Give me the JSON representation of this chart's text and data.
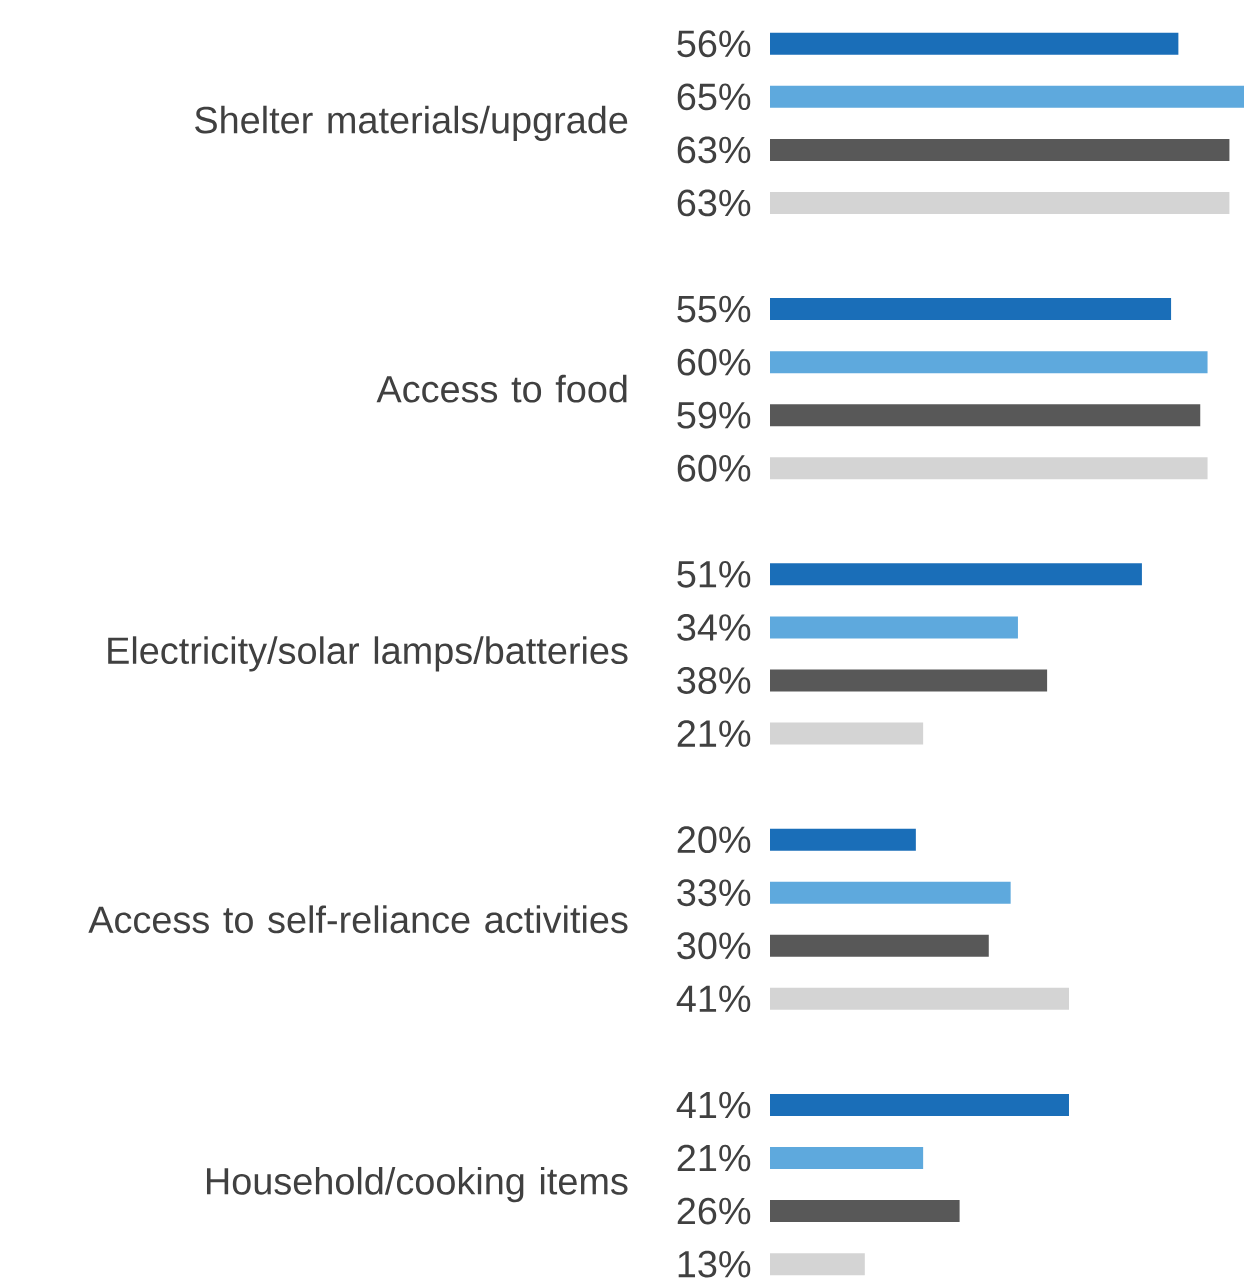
{
  "chart_data": {
    "type": "bar",
    "orientation": "horizontal",
    "categories": [
      "Shelter materials/upgrade",
      "Access to food",
      "Electricity/solar lamps/batteries",
      "Access to self-reliance activities",
      "Household/cooking items"
    ],
    "series": [
      {
        "color": "#1a6eb8",
        "values": [
          56,
          55,
          51,
          20,
          41
        ],
        "value_labels": [
          "56%",
          "55%",
          "51%",
          "20%",
          "41%"
        ]
      },
      {
        "color": "#5ea9dd",
        "values": [
          65,
          60,
          34,
          33,
          21
        ],
        "value_labels": [
          "65%",
          "60%",
          "34%",
          "33%",
          "21%"
        ]
      },
      {
        "color": "#585858",
        "values": [
          63,
          59,
          38,
          30,
          26
        ],
        "value_labels": [
          "63%",
          "59%",
          "38%",
          "30%",
          "26%"
        ]
      },
      {
        "color": "#d4d4d4",
        "values": [
          63,
          60,
          21,
          41,
          13
        ],
        "value_labels": [
          "63%",
          "60%",
          "21%",
          "41%",
          "13%"
        ]
      }
    ]
  }
}
